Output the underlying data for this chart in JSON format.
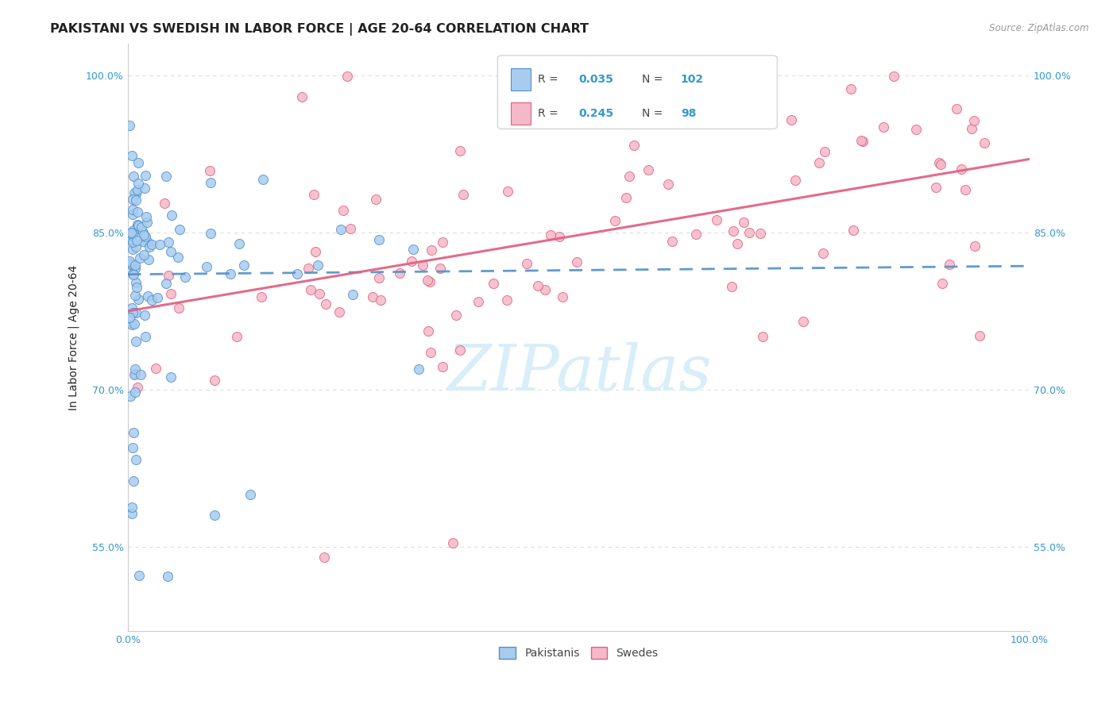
{
  "title": "PAKISTANI VS SWEDISH IN LABOR FORCE | AGE 20-64 CORRELATION CHART",
  "source": "Source: ZipAtlas.com",
  "ylabel": "In Labor Force | Age 20-64",
  "xlim": [
    0.0,
    1.0
  ],
  "ylim": [
    0.47,
    1.03
  ],
  "yticks": [
    0.55,
    0.7,
    0.85,
    1.0
  ],
  "ytick_labels": [
    "55.0%",
    "70.0%",
    "85.0%",
    "100.0%"
  ],
  "xtick_labels": [
    "0.0%",
    "100.0%"
  ],
  "blue_R": 0.035,
  "blue_N": 102,
  "pink_R": 0.245,
  "pink_N": 98,
  "blue_fill_color": "#A8CCF0",
  "blue_edge_color": "#5090C8",
  "pink_fill_color": "#F5B8C8",
  "pink_edge_color": "#E06080",
  "blue_line_color": "#5090C8",
  "pink_line_color": "#E06080",
  "watermark_text": "ZIPatlas",
  "watermark_color": "#D8EEF8",
  "title_color": "#222222",
  "axis_label_color": "#3399CC",
  "grid_color": "#DDDDDD",
  "background_color": "#FFFFFF",
  "legend_text_color": "#444444",
  "blue_line_start_y": 0.81,
  "blue_line_end_y": 0.818,
  "pink_line_start_y": 0.775,
  "pink_line_end_y": 0.92
}
